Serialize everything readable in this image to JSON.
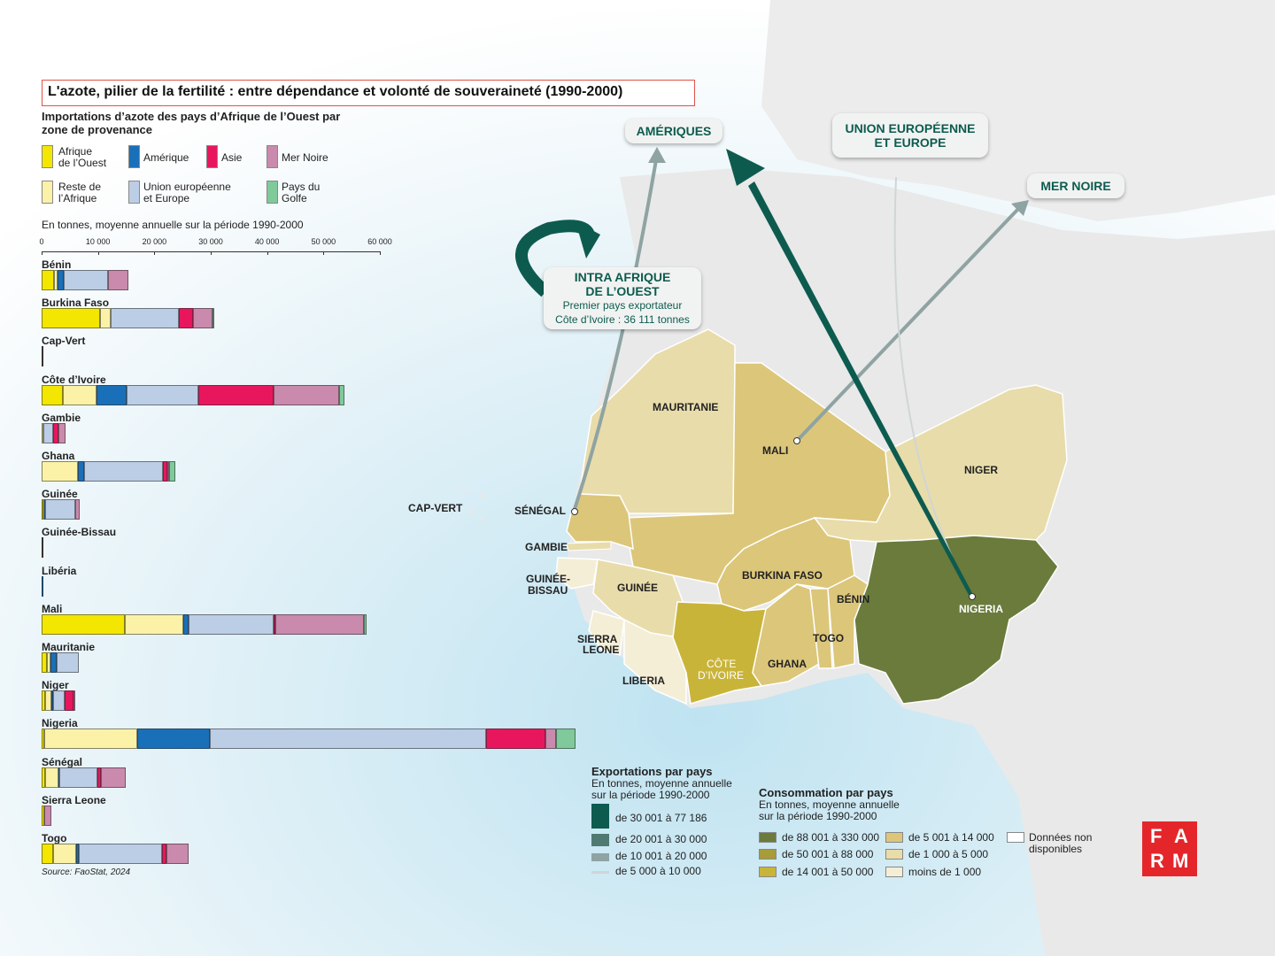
{
  "title": "L'azote, pilier de la fertilité : entre dépendance et volonté de souveraineté (1990-2000)",
  "colors": {
    "afrique_ouest": "#f3e600",
    "reste_afrique": "#fbf2a8",
    "amerique": "#1a70b8",
    "asie": "#e8175d",
    "mer_noire": "#c98aad",
    "union_europeenne": "#bccde6",
    "pays_golfe": "#7fc99b"
  },
  "chart_data": {
    "type": "bar",
    "title": "Importations d’azote des pays d’Afrique de l’Ouest par zone de provenance",
    "unit_note": "En tonnes, moyenne annuelle sur la période 1990-2000",
    "xlim": [
      0,
      60000
    ],
    "ticks": [
      "0",
      "10 000",
      "20 000",
      "30 000",
      "40 000",
      "50 000",
      "60 000"
    ],
    "series": [
      {
        "name": "Afrique de l’Ouest",
        "key": "afrique_ouest"
      },
      {
        "name": "Reste de l’Afrique",
        "key": "reste_afrique"
      },
      {
        "name": "Amérique",
        "key": "amerique"
      },
      {
        "name": "Union européenne et Europe",
        "key": "union_europeenne"
      },
      {
        "name": "Asie",
        "key": "asie"
      },
      {
        "name": "Mer Noire",
        "key": "mer_noire"
      },
      {
        "name": "Pays du Golfe",
        "key": "pays_golfe"
      }
    ],
    "categories": [
      "Bénin",
      "Burkina Faso",
      "Cap-Vert",
      "Côte d’Ivoire",
      "Gambie",
      "Ghana",
      "Guinée",
      "Guinée-Bissau",
      "Libéria",
      "Mali",
      "Mauritanie",
      "Niger",
      "Nigeria",
      "Sénégal",
      "Sierra Leone",
      "Togo"
    ],
    "values": {
      "afrique_ouest": [
        2200,
        10300,
        0,
        3800,
        0,
        0,
        300,
        0,
        0,
        14700,
        1000,
        600,
        500,
        600,
        400,
        2000
      ],
      "reste_afrique": [
        700,
        1900,
        0,
        6000,
        300,
        6500,
        200,
        0,
        0,
        10400,
        600,
        1200,
        16400,
        2400,
        0,
        4100
      ],
      "amerique": [
        1000,
        0,
        0,
        5300,
        0,
        1000,
        100,
        0,
        300,
        900,
        1100,
        300,
        13000,
        100,
        0,
        500
      ],
      "union_europeenne": [
        7900,
        12100,
        0,
        12700,
        1700,
        14000,
        5300,
        0,
        0,
        15200,
        3900,
        2000,
        48900,
        6800,
        0,
        14700
      ],
      "asie": [
        0,
        2500,
        0,
        13300,
        1000,
        800,
        0,
        0,
        0,
        200,
        0,
        1600,
        10600,
        600,
        0,
        900
      ],
      "mer_noire": [
        3600,
        3500,
        0,
        11700,
        1300,
        300,
        800,
        0,
        0,
        15800,
        0,
        300,
        1800,
        4500,
        1400,
        3900
      ],
      "pays_golfe": [
        0,
        400,
        0,
        900,
        0,
        1100,
        0,
        0,
        0,
        500,
        0,
        0,
        3500,
        0,
        0,
        0
      ]
    },
    "country_labels": [
      "Bénin",
      "Burkina Faso",
      "Cap-Vert",
      "Côte d’Ivoire",
      "Gambie",
      "Ghana",
      "Guinée",
      "Guinée-Bissau",
      "Libéria",
      "Mali",
      "Mauritanie",
      "Niger",
      "Nigeria",
      "Sénégal",
      "Sierra Leone",
      "Togo"
    ]
  },
  "legend": {
    "afrique_ouest": "Afrique\nde l’Ouest",
    "amerique": "Amérique",
    "asie": "Asie",
    "mer_noire": "Mer Noire",
    "reste_afrique": "Reste de\nl’Afrique",
    "union_europeenne": "Union européenne\net Europe",
    "pays_golfe": "Pays du\nGolfe"
  },
  "source": "Source: FaoStat, 2024",
  "map": {
    "bubbles": {
      "ameriques": "AMÉRIQUES",
      "ue_line1": "UNION EUROPÉENNE",
      "ue_line2": "ET EUROPE",
      "mer_noire": "MER NOIRE",
      "intra_line1": "INTRA AFRIQUE",
      "intra_line2": "DE L’OUEST",
      "intra_sub1": "Premier pays exportateur",
      "intra_sub2": "Côte d’Ivoire : 36 111 tonnes"
    },
    "labels": {
      "mauritanie": "MAURITANIE",
      "mali": "MALI",
      "niger": "NIGER",
      "cap_vert": "CAP-VERT",
      "senegal": "SÉNÉGAL",
      "gambie": "GAMBIE",
      "guinee_bissau_1": "GUINÉE-",
      "guinee_bissau_2": "BISSAU",
      "guinee": "GUINÉE",
      "burkina": "BURKINA FASO",
      "benin": "BÉNIN",
      "nigeria": "NIGERIA",
      "sierra_1": "SIERRA",
      "sierra_2": "LEONE",
      "liberia": "LIBERIA",
      "cote_1": "CÔTE",
      "cote_2": "D’IVOIRE",
      "ghana": "GHANA",
      "togo": "TOGO"
    }
  },
  "export_legend": {
    "title": "Exportations par pays",
    "sub1": "En tonnes, moyenne annuelle",
    "sub2": "sur la période 1990-2000",
    "items": [
      "de 30 001 à 77 186",
      "de 20 001 à 30 000",
      "de 10 001 à 20 000",
      "de 5 000 à 10 000"
    ]
  },
  "conso_legend": {
    "title": "Consommation par pays",
    "sub1": "En tonnes, moyenne annuelle",
    "sub2": "sur la période 1990-2000",
    "items": [
      "de 88 001 à 330 000",
      "de 50 001 à 88 000",
      "de 14 001 à 50 000",
      "de 5 001 à 14 000",
      "de 1 000 à 5 000",
      "moins de 1 000",
      "Données non disponibles"
    ],
    "colors": [
      "#6a7b3c",
      "#a89b3a",
      "#c9b43a",
      "#dcc67a",
      "#e8dcaa",
      "#f4eed6",
      "#ffffff"
    ]
  },
  "logo": {
    "l1": "F",
    "l2": "A",
    "l3": "R",
    "l4": "M"
  }
}
